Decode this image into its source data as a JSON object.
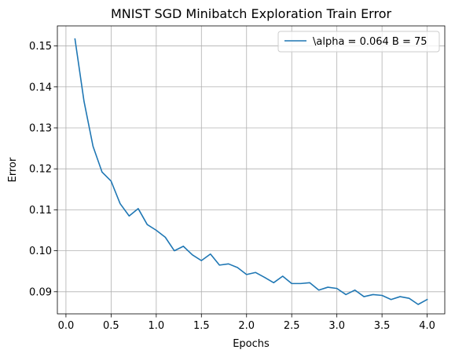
{
  "chart_data": {
    "type": "line",
    "title": "MNIST SGD Minibatch Exploration Train Error",
    "xlabel": "Epochs",
    "ylabel": "Error",
    "xlim": [
      -0.095,
      4.195
    ],
    "ylim": [
      0.0846,
      0.1549
    ],
    "x_ticks": [
      0.0,
      0.5,
      1.0,
      1.5,
      2.0,
      2.5,
      3.0,
      3.5,
      4.0
    ],
    "x_tick_labels": [
      "0.0",
      "0.5",
      "1.0",
      "1.5",
      "2.0",
      "2.5",
      "3.0",
      "3.5",
      "4.0"
    ],
    "y_ticks": [
      0.09,
      0.1,
      0.11,
      0.12,
      0.13,
      0.14,
      0.15
    ],
    "y_tick_labels": [
      "0.09",
      "0.10",
      "0.11",
      "0.12",
      "0.13",
      "0.14",
      "0.15"
    ],
    "grid": true,
    "legend_position": "upper right",
    "series": [
      {
        "name": "\\alpha = 0.064 B = 75",
        "color": "#1f77b4",
        "x": [
          0.1,
          0.2,
          0.3,
          0.4,
          0.5,
          0.6,
          0.7,
          0.8,
          0.9,
          1.0,
          1.1,
          1.2,
          1.3,
          1.4,
          1.5,
          1.6,
          1.7,
          1.8,
          1.9,
          2.0,
          2.1,
          2.2,
          2.3,
          2.4,
          2.5,
          2.6,
          2.7,
          2.8,
          2.9,
          3.0,
          3.1,
          3.2,
          3.3,
          3.4,
          3.5,
          3.6,
          3.7,
          3.8,
          3.9,
          4.0
        ],
        "y": [
          0.1517,
          0.1365,
          0.1255,
          0.1192,
          0.117,
          0.1115,
          0.1085,
          0.1103,
          0.1064,
          0.105,
          0.1033,
          0.1,
          0.1011,
          0.099,
          0.0976,
          0.0992,
          0.0965,
          0.0968,
          0.0959,
          0.0942,
          0.0947,
          0.0935,
          0.0922,
          0.0938,
          0.092,
          0.092,
          0.0922,
          0.0904,
          0.0911,
          0.0908,
          0.0893,
          0.0904,
          0.0888,
          0.0893,
          0.0891,
          0.0881,
          0.0888,
          0.0884,
          0.0869,
          0.0881
        ]
      }
    ]
  }
}
